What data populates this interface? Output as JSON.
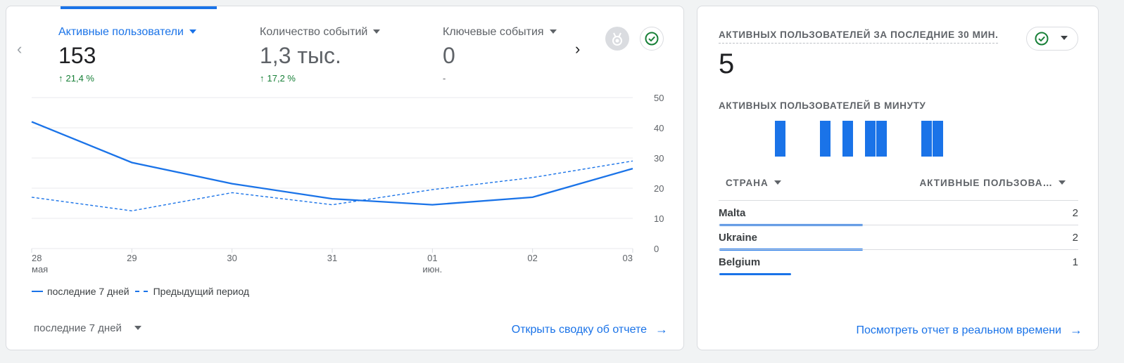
{
  "main_card": {
    "metrics": [
      {
        "label": "Активные пользователи",
        "value": "153",
        "change": "21,4 %",
        "active": true
      },
      {
        "label": "Количество событий",
        "value": "1,3 тыс.",
        "change": "17,2 %",
        "active": false
      },
      {
        "label": "Ключевые события",
        "value": "0",
        "change": "-",
        "active": false
      }
    ],
    "icons": {
      "prev": "chevron-left-icon",
      "next": "chevron-right-icon",
      "medal": "medal-icon",
      "check": "check-circle-icon"
    },
    "legend": {
      "current": "последние 7 дней",
      "previous": "Предыдущий период"
    },
    "period_select": "последние 7 дней",
    "open_report_link": "Открыть сводку об отчете"
  },
  "chart_data": {
    "type": "line",
    "x": [
      "28",
      "29",
      "30",
      "31",
      "01",
      "02",
      "03"
    ],
    "x_sublabels": [
      "мая",
      "",
      "",
      "",
      "июн.",
      "",
      ""
    ],
    "ylim": [
      0,
      50
    ],
    "yticks": [
      0,
      10,
      20,
      30,
      40,
      50
    ],
    "y_axis_side": "right",
    "grid": true,
    "legend_position": "bottom-left",
    "series": [
      {
        "name": "последние 7 дней",
        "style": "solid",
        "values": [
          42,
          28.5,
          21.5,
          16.5,
          14.5,
          17,
          26.5
        ]
      },
      {
        "name": "Предыдущий период",
        "style": "dashed",
        "values": [
          17,
          12.5,
          18.5,
          14.5,
          19.5,
          23.5,
          29
        ]
      }
    ],
    "color": "#1a73e8"
  },
  "realtime_card": {
    "title": "АКТИВНЫХ ПОЛЬЗОВАТЕЛЕЙ ЗА ПОСЛЕДНИЕ 30 МИН.",
    "value": "5",
    "per_minute_label": "АКТИВНЫХ ПОЛЬЗОВАТЕЛЕЙ В МИНУТУ",
    "per_minute_bars": [
      0,
      0,
      1,
      0,
      0,
      0,
      1,
      0,
      1,
      0,
      1,
      1,
      0,
      0,
      0,
      1,
      1
    ],
    "table_headers": {
      "country": "СТРАНА",
      "users": "АКТИВНЫЕ ПОЛЬЗОВА…"
    },
    "rows": [
      {
        "country": "Malta",
        "users": "2",
        "fraction": 1.0
      },
      {
        "country": "Ukraine",
        "users": "2",
        "fraction": 1.0
      },
      {
        "country": "Belgium",
        "users": "1",
        "fraction": 0.5
      }
    ],
    "report_link": "Посмотреть отчет в реальном времени"
  }
}
